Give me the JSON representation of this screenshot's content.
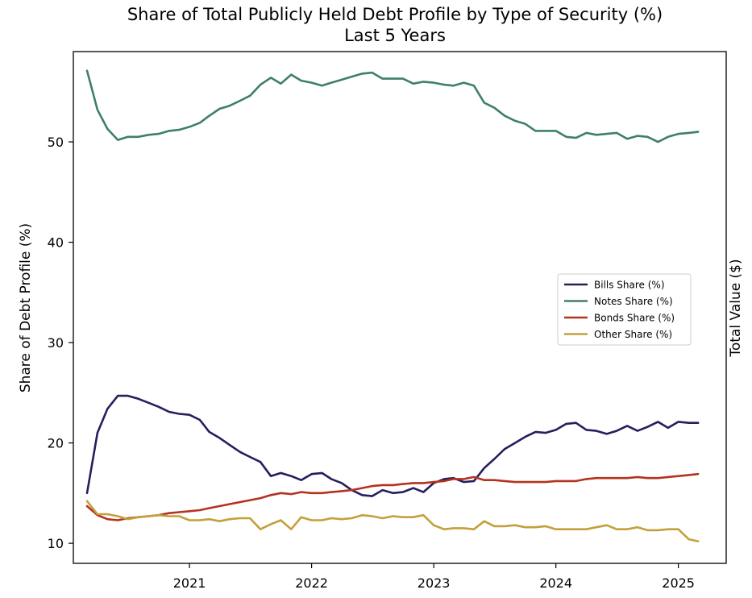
{
  "chart_data": {
    "type": "line",
    "title": [
      "Share of Total Publicly Held Debt Profile by Type of Security (%)",
      "Last 5 Years"
    ],
    "ylabel": "Share of Debt Profile (%)",
    "ylabel_right": "Total Value ($)",
    "xlabel": "",
    "x_ticks": [
      "2021",
      "2022",
      "2023",
      "2024",
      "2025"
    ],
    "y_ticks": [
      10,
      20,
      30,
      40,
      50
    ],
    "xlim": [
      "2020-01-20",
      "2025-05-24"
    ],
    "ylim": [
      8.0,
      59.0
    ],
    "grid": false,
    "legend_position": "center-right",
    "x": [
      "2020-03",
      "2020-04",
      "2020-05",
      "2020-06",
      "2020-07",
      "2020-08",
      "2020-09",
      "2020-10",
      "2020-11",
      "2020-12",
      "2021-01",
      "2021-02",
      "2021-03",
      "2021-04",
      "2021-05",
      "2021-06",
      "2021-07",
      "2021-08",
      "2021-09",
      "2021-10",
      "2021-11",
      "2021-12",
      "2022-01",
      "2022-02",
      "2022-03",
      "2022-04",
      "2022-05",
      "2022-06",
      "2022-07",
      "2022-08",
      "2022-09",
      "2022-10",
      "2022-11",
      "2022-12",
      "2023-01",
      "2023-02",
      "2023-03",
      "2023-04",
      "2023-05",
      "2023-06",
      "2023-07",
      "2023-08",
      "2023-09",
      "2023-10",
      "2023-11",
      "2023-12",
      "2024-01",
      "2024-02",
      "2024-03",
      "2024-04",
      "2024-05",
      "2024-06",
      "2024-07",
      "2024-08",
      "2024-09",
      "2024-10",
      "2024-11",
      "2024-12",
      "2025-01",
      "2025-02",
      "2025-03"
    ],
    "series": [
      {
        "name": "Bills Share (%)",
        "color": "#261f5e",
        "values": [
          15.0,
          21.0,
          23.4,
          24.7,
          24.7,
          24.4,
          24.0,
          23.6,
          23.1,
          22.9,
          22.8,
          22.3,
          21.1,
          20.5,
          19.8,
          19.1,
          18.6,
          18.1,
          16.7,
          17.0,
          16.7,
          16.3,
          16.9,
          17.0,
          16.4,
          16.0,
          15.3,
          14.8,
          14.7,
          15.3,
          15.0,
          15.1,
          15.5,
          15.1,
          16.0,
          16.4,
          16.5,
          16.1,
          16.2,
          17.5,
          18.4,
          19.4,
          20.0,
          20.6,
          21.1,
          21.0,
          21.3,
          21.9,
          22.0,
          21.3,
          21.2,
          20.9,
          21.2,
          21.7,
          21.2,
          21.6,
          22.1,
          21.5,
          22.1,
          22.0,
          22.0
        ]
      },
      {
        "name": "Notes Share (%)",
        "color": "#3e7f6a",
        "values": [
          57.1,
          53.2,
          51.3,
          50.2,
          50.5,
          50.5,
          50.7,
          50.8,
          51.1,
          51.2,
          51.5,
          51.9,
          52.6,
          53.3,
          53.6,
          54.1,
          54.6,
          55.7,
          56.4,
          55.8,
          56.7,
          56.1,
          55.9,
          55.6,
          55.9,
          56.2,
          56.5,
          56.8,
          56.9,
          56.3,
          56.3,
          56.3,
          55.8,
          56.0,
          55.9,
          55.7,
          55.6,
          55.9,
          55.6,
          53.9,
          53.4,
          52.6,
          52.1,
          51.8,
          51.1,
          51.1,
          51.1,
          50.5,
          50.4,
          50.9,
          50.7,
          50.8,
          50.9,
          50.3,
          50.6,
          50.5,
          50.0,
          50.5,
          50.8,
          50.9,
          51.0
        ]
      },
      {
        "name": "Bonds Share (%)",
        "color": "#b5321f",
        "values": [
          13.7,
          12.8,
          12.4,
          12.3,
          12.5,
          12.6,
          12.7,
          12.8,
          13.0,
          13.1,
          13.2,
          13.3,
          13.5,
          13.7,
          13.9,
          14.1,
          14.3,
          14.5,
          14.8,
          15.0,
          14.9,
          15.1,
          15.0,
          15.0,
          15.1,
          15.2,
          15.3,
          15.5,
          15.7,
          15.8,
          15.8,
          15.9,
          16.0,
          16.0,
          16.1,
          16.2,
          16.4,
          16.4,
          16.6,
          16.3,
          16.3,
          16.2,
          16.1,
          16.1,
          16.1,
          16.1,
          16.2,
          16.2,
          16.2,
          16.4,
          16.5,
          16.5,
          16.5,
          16.5,
          16.6,
          16.5,
          16.5,
          16.6,
          16.7,
          16.8,
          16.9
        ]
      },
      {
        "name": "Other Share (%)",
        "color": "#c3a03b",
        "values": [
          14.2,
          12.9,
          12.9,
          12.7,
          12.4,
          12.6,
          12.7,
          12.8,
          12.7,
          12.7,
          12.3,
          12.3,
          12.4,
          12.2,
          12.4,
          12.5,
          12.5,
          11.4,
          11.9,
          12.3,
          11.4,
          12.6,
          12.3,
          12.3,
          12.5,
          12.4,
          12.5,
          12.8,
          12.7,
          12.5,
          12.7,
          12.6,
          12.6,
          12.8,
          11.8,
          11.4,
          11.5,
          11.5,
          11.4,
          12.2,
          11.7,
          11.7,
          11.8,
          11.6,
          11.6,
          11.7,
          11.4,
          11.4,
          11.4,
          11.4,
          11.6,
          11.8,
          11.4,
          11.4,
          11.6,
          11.3,
          11.3,
          11.4,
          11.4,
          10.4,
          10.2
        ]
      }
    ]
  }
}
